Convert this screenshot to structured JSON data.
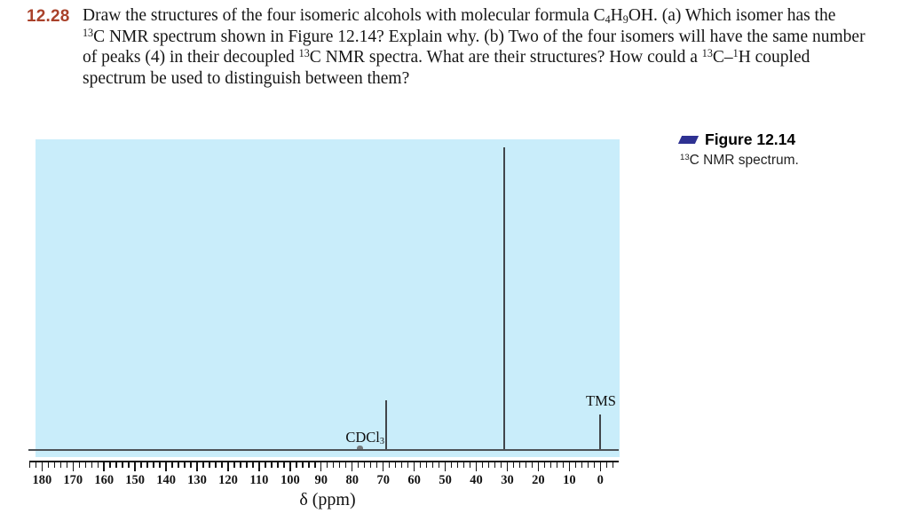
{
  "problem": {
    "number": "12.28",
    "number_color": "#a9412a",
    "lines": [
      [
        {
          "t": "Draw the structures of the four isomeric alcohols with molecular formula C"
        },
        {
          "sub": "4"
        },
        {
          "t": "H"
        },
        {
          "sub": "9"
        },
        {
          "t": "OH. (a) Which isomer has the"
        }
      ],
      [
        {
          "sup": "13"
        },
        {
          "t": "C NMR spectrum shown in Figure 12.14? Explain why. (b) Two of the four isomers will have the same number"
        }
      ],
      [
        {
          "t": "of peaks (4) in their decoupled "
        },
        {
          "sup": "13"
        },
        {
          "t": "C NMR spectra. What are their structures? How could a "
        },
        {
          "sup": "13"
        },
        {
          "t": "C–"
        },
        {
          "sup": "1"
        },
        {
          "t": "H coupled"
        }
      ],
      [
        {
          "t": "spectrum be used to distinguish between them?"
        }
      ]
    ]
  },
  "figure_caption": {
    "swatch_color": "#2e3192",
    "title": "Figure 12.14",
    "subtitle_runs": [
      {
        "sup": "13"
      },
      {
        "t": "C NMR spectrum."
      }
    ]
  },
  "chart_data": {
    "type": "line",
    "subtype": "13C NMR decoupled stick spectrum",
    "background_color": "#c9edfa",
    "xlabel": "δ (ppm)",
    "x_axis": {
      "min": 0,
      "max": 180,
      "major_step": 10,
      "minor_step": 2,
      "reversed": true,
      "tick_labels": [
        "180",
        "170",
        "160",
        "150",
        "140",
        "130",
        "120",
        "110",
        "100",
        "90",
        "80",
        "70",
        "60",
        "50",
        "40",
        "30",
        "20",
        "10",
        "0"
      ]
    },
    "peaks": [
      {
        "ppm": 77.5,
        "height_frac": 0.015,
        "shape": "bump",
        "assignment": "CDCl3 solvent"
      },
      {
        "ppm": 69,
        "height_frac": 0.164,
        "shape": "stick",
        "assignment": ""
      },
      {
        "ppm": 31,
        "height_frac": 1.0,
        "shape": "stick",
        "assignment": ""
      },
      {
        "ppm": 0,
        "height_frac": 0.117,
        "shape": "stick",
        "assignment": "TMS"
      }
    ],
    "annotations": [
      {
        "id": "cdcl3",
        "runs": [
          {
            "t": "CDCl"
          },
          {
            "sub": "3"
          }
        ]
      },
      {
        "id": "tms",
        "runs": [
          {
            "t": "TMS"
          }
        ]
      }
    ]
  }
}
